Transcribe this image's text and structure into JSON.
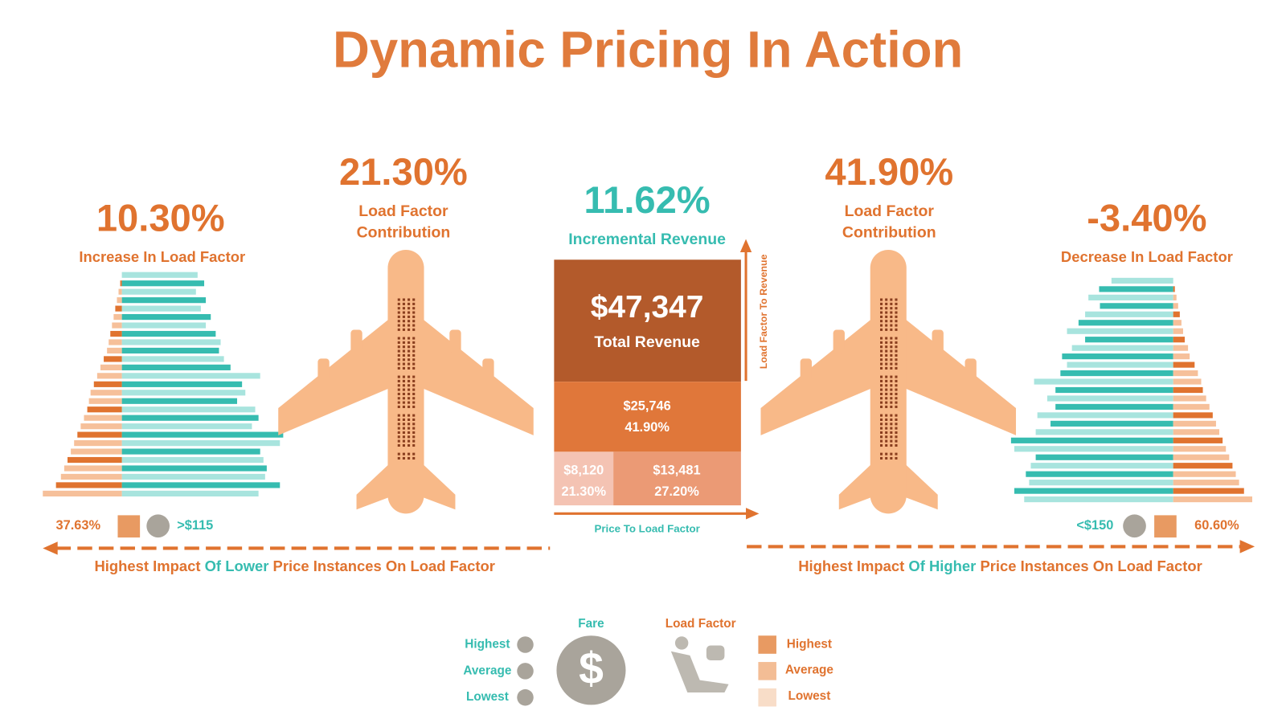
{
  "title": "Dynamic Pricing In Action",
  "left": {
    "value": "10.30%",
    "label": "Increase In Load Factor",
    "share": "37.63%",
    "price": ">$115",
    "caption": [
      "Highest Impact",
      "Of Lower",
      "Price Instances On Load Factor"
    ],
    "bars": {
      "orange": [
        0,
        2,
        4,
        6,
        8,
        10,
        12,
        14,
        16,
        18,
        22,
        26,
        30,
        34,
        38,
        40,
        42,
        46,
        50,
        54,
        58,
        62,
        66,
        70,
        74,
        80,
        96
      ],
      "teal": [
        92,
        100,
        90,
        102,
        96,
        108,
        102,
        114,
        120,
        118,
        124,
        132,
        168,
        146,
        150,
        140,
        162,
        166,
        158,
        196,
        192,
        168,
        172,
        176,
        174,
        192,
        166
      ]
    }
  },
  "left_plane": {
    "value": "21.30%",
    "label": [
      "Load Factor",
      "Contribution"
    ]
  },
  "center": {
    "value": "11.62%",
    "label": "Incremental Revenue",
    "total": "$47,347",
    "total_label": "Total Revenue",
    "mid": [
      "$25,746",
      "41.90%"
    ],
    "low_left": [
      "$8,120",
      "21.30%"
    ],
    "low_right": [
      "$13,481",
      "27.20%"
    ],
    "axis_y": "Load Factor To Revenue",
    "axis_x": "Price To Load Factor"
  },
  "right_plane": {
    "value": "41.90%",
    "label": [
      "Load Factor",
      "Contribution"
    ]
  },
  "right": {
    "value": "-3.40%",
    "label": "Decrease In Load Factor",
    "share": "60.60%",
    "price": "<$150",
    "caption": [
      "Highest Impact",
      "Of Higher",
      "Price Instances On Load Factor"
    ],
    "bars": {
      "orange": [
        0,
        2,
        4,
        6,
        8,
        10,
        12,
        14,
        18,
        20,
        26,
        30,
        34,
        36,
        40,
        44,
        48,
        52,
        56,
        60,
        64,
        68,
        72,
        76,
        80,
        86,
        96
      ],
      "teal": [
        75,
        90,
        103,
        89,
        107,
        115,
        129,
        107,
        123,
        135,
        129,
        137,
        169,
        143,
        153,
        143,
        165,
        149,
        167,
        197,
        193,
        167,
        173,
        179,
        175,
        193,
        181
      ]
    }
  },
  "legend": {
    "fare": "Fare",
    "load_factor": "Load Factor",
    "fare_levels": [
      "Highest",
      "Average",
      "Lowest"
    ],
    "load_levels": [
      "Highest",
      "Average",
      "Lowest"
    ]
  }
}
